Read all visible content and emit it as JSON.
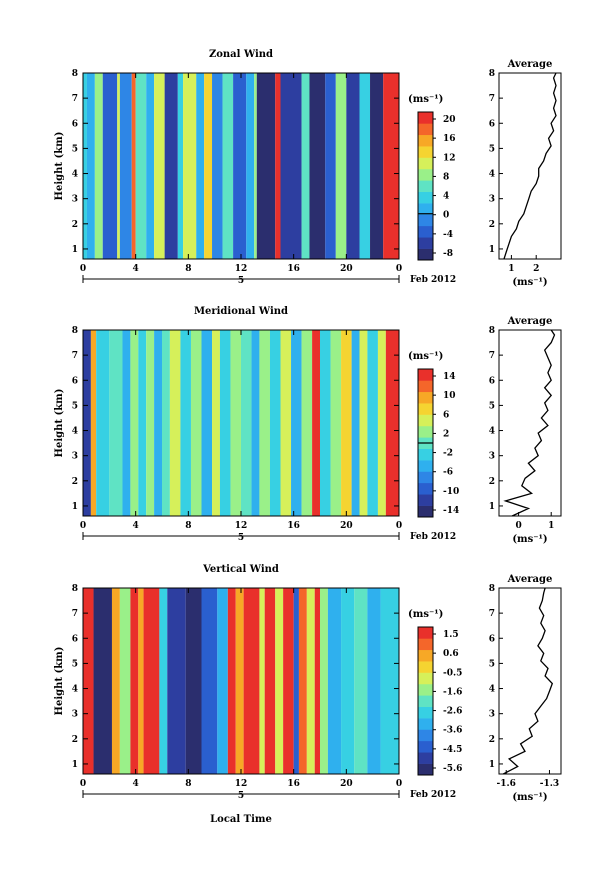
{
  "figure": {
    "xlabel": "Local Time",
    "date_label": "Feb 2012",
    "day_label": "5",
    "unit_label": "(ms⁻¹)",
    "average_title": "Average"
  },
  "chart_data": [
    {
      "type": "heatmap",
      "title": "Zonal Wind",
      "xlabel": "Local Time",
      "ylabel": "Height (km)",
      "x_ticks": [
        "0",
        "4",
        "8",
        "12",
        "16",
        "20",
        "0"
      ],
      "y_ticks": [
        "1",
        "2",
        "3",
        "4",
        "5",
        "6",
        "7",
        "8"
      ],
      "xlim": [
        0,
        24
      ],
      "ylim": [
        0.6,
        8
      ],
      "colorbar_label": "(ms⁻¹)",
      "colorbar_ticks": [
        "20",
        "16",
        "12",
        "8",
        "4",
        "0",
        "-4",
        "-8"
      ],
      "colorbar_range": [
        -10,
        22
      ],
      "colorbar_zero": 0,
      "columns": [
        {
          "t0": 0.0,
          "t1": 0.3,
          "v": 4
        },
        {
          "t0": 0.3,
          "t1": 0.9,
          "v": 2
        },
        {
          "t0": 0.9,
          "t1": 1.5,
          "v": 8
        },
        {
          "t0": 1.5,
          "t1": 2.6,
          "v": -4
        },
        {
          "t0": 2.6,
          "t1": 2.8,
          "v": 12
        },
        {
          "t0": 2.8,
          "t1": 3.7,
          "v": -2
        },
        {
          "t0": 3.7,
          "t1": 4.0,
          "v": 18
        },
        {
          "t0": 4.0,
          "t1": 4.8,
          "v": 6
        },
        {
          "t0": 4.8,
          "t1": 5.4,
          "v": 2
        },
        {
          "t0": 5.4,
          "t1": 6.2,
          "v": 10
        },
        {
          "t0": 6.2,
          "t1": 7.2,
          "v": -6
        },
        {
          "t0": 7.2,
          "t1": 7.6,
          "v": 4
        },
        {
          "t0": 7.6,
          "t1": 8.6,
          "v": 10
        },
        {
          "t0": 8.6,
          "t1": 9.2,
          "v": 2
        },
        {
          "t0": 9.2,
          "t1": 9.8,
          "v": 14
        },
        {
          "t0": 9.8,
          "t1": 10.6,
          "v": -2
        },
        {
          "t0": 10.6,
          "t1": 11.4,
          "v": 6
        },
        {
          "t0": 11.4,
          "t1": 12.4,
          "v": -4
        },
        {
          "t0": 12.4,
          "t1": 13.0,
          "v": 2
        },
        {
          "t0": 13.0,
          "t1": 13.2,
          "v": 8
        },
        {
          "t0": 13.2,
          "t1": 14.6,
          "v": -8
        },
        {
          "t0": 14.6,
          "t1": 15.0,
          "v": 20
        },
        {
          "t0": 15.0,
          "t1": 16.6,
          "v": -6
        },
        {
          "t0": 16.6,
          "t1": 17.2,
          "v": 6
        },
        {
          "t0": 17.2,
          "t1": 18.4,
          "v": -8
        },
        {
          "t0": 18.4,
          "t1": 19.2,
          "v": -4
        },
        {
          "t0": 19.2,
          "t1": 20.0,
          "v": 8
        },
        {
          "t0": 20.0,
          "t1": 21.0,
          "v": -6
        },
        {
          "t0": 21.0,
          "t1": 21.8,
          "v": 4
        },
        {
          "t0": 21.8,
          "t1": 22.8,
          "v": -8
        },
        {
          "t0": 22.8,
          "t1": 24.0,
          "v": 22
        }
      ],
      "average_profile": {
        "xlabel": "(ms⁻¹)",
        "x_ticks": [
          "1",
          "2"
        ],
        "xlim": [
          0.5,
          3.0
        ],
        "heights": [
          0.6,
          0.9,
          1.2,
          1.5,
          1.8,
          2.1,
          2.4,
          2.7,
          3.0,
          3.3,
          3.6,
          3.9,
          4.2,
          4.5,
          4.8,
          5.1,
          5.4,
          5.7,
          6.0,
          6.3,
          6.6,
          6.9,
          7.2,
          7.5,
          7.8,
          8.0
        ],
        "values": [
          0.7,
          0.8,
          0.9,
          1.0,
          1.2,
          1.3,
          1.5,
          1.6,
          1.7,
          1.8,
          2.0,
          2.1,
          2.1,
          2.3,
          2.4,
          2.6,
          2.5,
          2.7,
          2.6,
          2.8,
          2.7,
          2.8,
          2.7,
          2.8,
          2.7,
          2.8
        ]
      }
    },
    {
      "type": "heatmap",
      "title": "Meridional Wind",
      "xlabel": "Local Time",
      "ylabel": "Height (km)",
      "x_ticks": [
        "0",
        "4",
        "8",
        "12",
        "16",
        "20",
        "0"
      ],
      "y_ticks": [
        "1",
        "2",
        "3",
        "4",
        "5",
        "6",
        "7",
        "8"
      ],
      "xlim": [
        0,
        24
      ],
      "ylim": [
        0.6,
        8
      ],
      "colorbar_label": "(ms⁻¹)",
      "colorbar_ticks": [
        "14",
        "10",
        "6",
        "2",
        "-2",
        "-6",
        "-10",
        "-14"
      ],
      "colorbar_range": [
        -16,
        16
      ],
      "colorbar_zero": 0,
      "columns": [
        {
          "t0": 0.0,
          "t1": 0.6,
          "v": -12
        },
        {
          "t0": 0.6,
          "t1": 1.0,
          "v": 10
        },
        {
          "t0": 1.0,
          "t1": 2.0,
          "v": -2
        },
        {
          "t0": 2.0,
          "t1": 3.0,
          "v": 0
        },
        {
          "t0": 3.0,
          "t1": 3.6,
          "v": -4
        },
        {
          "t0": 3.6,
          "t1": 4.2,
          "v": 2
        },
        {
          "t0": 4.2,
          "t1": 4.8,
          "v": -2
        },
        {
          "t0": 4.8,
          "t1": 5.4,
          "v": 2
        },
        {
          "t0": 5.4,
          "t1": 6.0,
          "v": -4
        },
        {
          "t0": 6.0,
          "t1": 6.6,
          "v": 0
        },
        {
          "t0": 6.6,
          "t1": 7.4,
          "v": 4
        },
        {
          "t0": 7.4,
          "t1": 8.2,
          "v": -2
        },
        {
          "t0": 8.2,
          "t1": 9.0,
          "v": 2
        },
        {
          "t0": 9.0,
          "t1": 9.8,
          "v": -4
        },
        {
          "t0": 9.8,
          "t1": 10.4,
          "v": 4
        },
        {
          "t0": 10.4,
          "t1": 11.2,
          "v": -2
        },
        {
          "t0": 11.2,
          "t1": 12.0,
          "v": 2
        },
        {
          "t0": 12.0,
          "t1": 12.8,
          "v": 0
        },
        {
          "t0": 12.8,
          "t1": 13.4,
          "v": -4
        },
        {
          "t0": 13.4,
          "t1": 14.2,
          "v": 2
        },
        {
          "t0": 14.2,
          "t1": 15.0,
          "v": -2
        },
        {
          "t0": 15.0,
          "t1": 15.8,
          "v": 4
        },
        {
          "t0": 15.8,
          "t1": 16.6,
          "v": -4
        },
        {
          "t0": 16.6,
          "t1": 17.4,
          "v": 2
        },
        {
          "t0": 17.4,
          "t1": 18.0,
          "v": 14
        },
        {
          "t0": 18.0,
          "t1": 18.8,
          "v": -2
        },
        {
          "t0": 18.8,
          "t1": 19.6,
          "v": 2
        },
        {
          "t0": 19.6,
          "t1": 20.4,
          "v": 8
        },
        {
          "t0": 20.4,
          "t1": 21.0,
          "v": -4
        },
        {
          "t0": 21.0,
          "t1": 21.6,
          "v": 4
        },
        {
          "t0": 21.6,
          "t1": 22.4,
          "v": -2
        },
        {
          "t0": 22.4,
          "t1": 23.0,
          "v": 6
        },
        {
          "t0": 23.0,
          "t1": 24.0,
          "v": 14
        }
      ],
      "average_profile": {
        "xlabel": "(ms⁻¹)",
        "x_ticks": [
          "0",
          "1"
        ],
        "xlim": [
          -0.6,
          1.3
        ],
        "heights": [
          0.6,
          0.9,
          1.2,
          1.5,
          1.8,
          2.1,
          2.4,
          2.7,
          3.0,
          3.3,
          3.6,
          3.9,
          4.2,
          4.5,
          4.8,
          5.1,
          5.4,
          5.7,
          6.0,
          6.3,
          6.6,
          6.9,
          7.2,
          7.5,
          7.8,
          8.0
        ],
        "values": [
          -0.2,
          0.3,
          -0.4,
          0.4,
          0.1,
          0.2,
          0.5,
          0.3,
          0.6,
          0.5,
          0.7,
          0.6,
          0.9,
          0.7,
          0.9,
          0.8,
          1.0,
          0.8,
          1.0,
          0.9,
          1.0,
          0.9,
          0.8,
          1.0,
          1.1,
          1.0
        ]
      }
    },
    {
      "type": "heatmap",
      "title": "Vertical Wind",
      "xlabel": "Local Time",
      "ylabel": "Height (km)",
      "x_ticks": [
        "0",
        "4",
        "8",
        "12",
        "16",
        "20",
        "0"
      ],
      "y_ticks": [
        "1",
        "2",
        "3",
        "4",
        "5",
        "6",
        "7",
        "8"
      ],
      "xlim": [
        0,
        24
      ],
      "ylim": [
        0.6,
        8
      ],
      "colorbar_label": "(ms⁻¹)",
      "colorbar_ticks": [
        "1.5",
        "0.6",
        "-0.5",
        "-1.6",
        "-2.6",
        "-3.6",
        "-4.5",
        "-5.6"
      ],
      "colorbar_range": [
        -6.2,
        2.2
      ],
      "columns": [
        {
          "t0": 0.0,
          "t1": 0.8,
          "v": 2.0
        },
        {
          "t0": 0.8,
          "t1": 2.2,
          "v": -6.0
        },
        {
          "t0": 2.2,
          "t1": 2.8,
          "v": 0.4
        },
        {
          "t0": 2.8,
          "t1": 3.6,
          "v": -1.2
        },
        {
          "t0": 3.6,
          "t1": 4.2,
          "v": 2.0
        },
        {
          "t0": 4.2,
          "t1": 4.6,
          "v": 0.6
        },
        {
          "t0": 4.6,
          "t1": 5.8,
          "v": 2.0
        },
        {
          "t0": 5.8,
          "t1": 6.4,
          "v": -2.6
        },
        {
          "t0": 6.4,
          "t1": 7.8,
          "v": -5.0
        },
        {
          "t0": 7.8,
          "t1": 9.0,
          "v": -5.6
        },
        {
          "t0": 9.0,
          "t1": 10.2,
          "v": -4.6
        },
        {
          "t0": 10.2,
          "t1": 11.0,
          "v": -3.4
        },
        {
          "t0": 11.0,
          "t1": 11.6,
          "v": 2.0
        },
        {
          "t0": 11.6,
          "t1": 12.2,
          "v": 0.4
        },
        {
          "t0": 12.2,
          "t1": 13.4,
          "v": 2.0
        },
        {
          "t0": 13.4,
          "t1": 13.8,
          "v": -1.0
        },
        {
          "t0": 13.8,
          "t1": 14.6,
          "v": 2.0
        },
        {
          "t0": 14.6,
          "t1": 15.2,
          "v": -0.4
        },
        {
          "t0": 15.2,
          "t1": 16.0,
          "v": 2.0
        },
        {
          "t0": 16.0,
          "t1": 16.4,
          "v": -4.4
        },
        {
          "t0": 16.4,
          "t1": 17.0,
          "v": 1.0
        },
        {
          "t0": 17.0,
          "t1": 17.6,
          "v": -0.8
        },
        {
          "t0": 17.6,
          "t1": 18.0,
          "v": 2.0
        },
        {
          "t0": 18.0,
          "t1": 18.6,
          "v": -1.6
        },
        {
          "t0": 18.6,
          "t1": 19.6,
          "v": -3.4
        },
        {
          "t0": 19.6,
          "t1": 20.6,
          "v": -2.8
        },
        {
          "t0": 20.6,
          "t1": 21.6,
          "v": -2.2
        },
        {
          "t0": 21.6,
          "t1": 22.6,
          "v": -3.0
        },
        {
          "t0": 22.6,
          "t1": 24.0,
          "v": -2.4
        }
      ],
      "average_profile": {
        "xlabel": "(ms⁻¹)",
        "x_ticks": [
          "-1.6",
          "-1.3"
        ],
        "xlim": [
          -1.65,
          -1.22
        ],
        "heights": [
          0.6,
          0.9,
          1.2,
          1.5,
          1.8,
          2.1,
          2.4,
          2.7,
          3.0,
          3.3,
          3.6,
          3.9,
          4.2,
          4.5,
          4.8,
          5.1,
          5.4,
          5.7,
          6.0,
          6.3,
          6.6,
          6.9,
          7.2,
          7.5,
          7.8,
          8.0
        ],
        "values": [
          -1.62,
          -1.52,
          -1.58,
          -1.47,
          -1.5,
          -1.42,
          -1.44,
          -1.38,
          -1.4,
          -1.36,
          -1.32,
          -1.3,
          -1.28,
          -1.33,
          -1.31,
          -1.36,
          -1.34,
          -1.38,
          -1.35,
          -1.33,
          -1.36,
          -1.34,
          -1.37,
          -1.35,
          -1.34,
          -1.33
        ]
      }
    }
  ]
}
